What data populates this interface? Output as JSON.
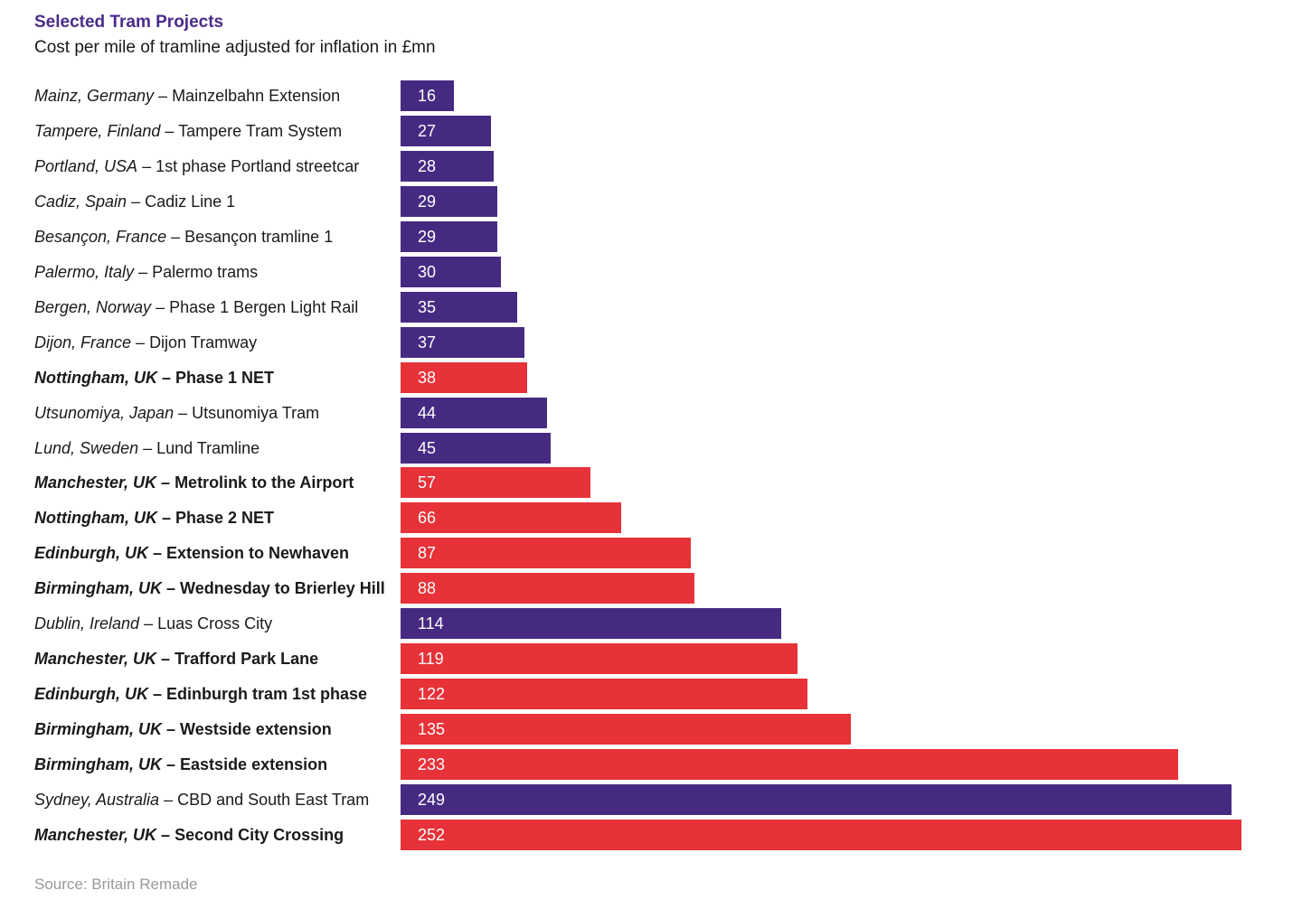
{
  "chart_data": {
    "type": "bar",
    "orientation": "horizontal",
    "title": "Selected Tram Projects",
    "subtitle": "Cost per mile of tramline adjusted for inflation in £mn",
    "xlim": [
      0,
      252
    ],
    "grid": false,
    "legend": "none",
    "categories": [
      {
        "place": "Mainz, Germany",
        "project": "Mainzelbahn Extension",
        "uk": false
      },
      {
        "place": "Tampere, Finland",
        "project": "Tampere Tram System",
        "uk": false
      },
      {
        "place": "Portland, USA",
        "project": "1st phase Portland streetcar",
        "uk": false
      },
      {
        "place": "Cadiz, Spain",
        "project": "Cadiz Line 1",
        "uk": false
      },
      {
        "place": "Besançon, France",
        "project": "Besançon tramline 1",
        "uk": false
      },
      {
        "place": "Palermo, Italy",
        "project": "Palermo trams",
        "uk": false
      },
      {
        "place": "Bergen, Norway",
        "project": "Phase 1 Bergen Light Rail",
        "uk": false
      },
      {
        "place": "Dijon, France",
        "project": "Dijon Tramway",
        "uk": false
      },
      {
        "place": "Nottingham, UK",
        "project": "Phase 1 NET",
        "uk": true
      },
      {
        "place": "Utsunomiya, Japan",
        "project": "Utsunomiya Tram",
        "uk": false
      },
      {
        "place": "Lund, Sweden",
        "project": "Lund Tramline",
        "uk": false
      },
      {
        "place": "Manchester, UK",
        "project": "Metrolink to the Airport",
        "uk": true
      },
      {
        "place": "Nottingham, UK",
        "project": "Phase 2 NET",
        "uk": true
      },
      {
        "place": "Edinburgh, UK",
        "project": "Extension to Newhaven",
        "uk": true
      },
      {
        "place": "Birmingham, UK",
        "project": "Wednesday to Brierley Hill",
        "uk": true
      },
      {
        "place": "Dublin, Ireland",
        "project": "Luas Cross City",
        "uk": false
      },
      {
        "place": "Manchester, UK",
        "project": "Trafford Park Lane",
        "uk": true
      },
      {
        "place": "Edinburgh, UK",
        "project": "Edinburgh tram 1st phase",
        "uk": true
      },
      {
        "place": "Birmingham, UK",
        "project": "Westside extension",
        "uk": true
      },
      {
        "place": "Birmingham, UK",
        "project": "Eastside extension",
        "uk": true
      },
      {
        "place": "Sydney, Australia",
        "project": "CBD and South East Tram",
        "uk": false
      },
      {
        "place": "Manchester, UK",
        "project": "Second City Crossing",
        "uk": true
      }
    ],
    "values": [
      16,
      27,
      28,
      29,
      29,
      30,
      35,
      37,
      38,
      44,
      45,
      57,
      66,
      87,
      88,
      114,
      119,
      122,
      135,
      233,
      249,
      252
    ],
    "separator": "–",
    "colors": {
      "uk": "#e63238",
      "international": "#462a82"
    },
    "source": "Source: Britain Remade"
  }
}
